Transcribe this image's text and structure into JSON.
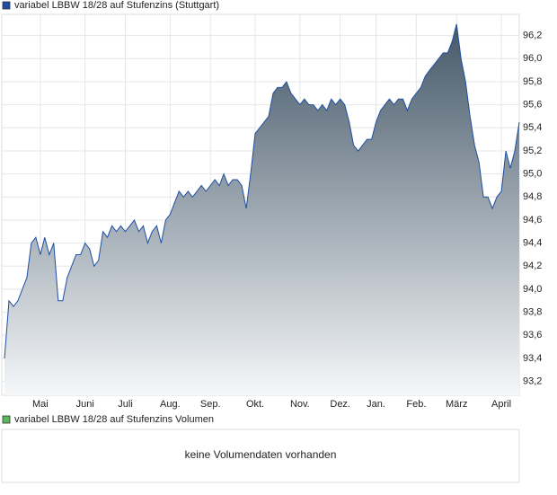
{
  "chart_data": {
    "type": "area",
    "series": [
      {
        "name": "variabel LBBW 18/28 auf Stufenzins (Stuttgart)",
        "color": "#1f4ea3",
        "values": [
          93.4,
          93.9,
          93.85,
          93.9,
          94.0,
          94.1,
          94.4,
          94.45,
          94.3,
          94.45,
          94.3,
          94.4,
          93.9,
          93.9,
          94.1,
          94.2,
          94.3,
          94.3,
          94.4,
          94.35,
          94.2,
          94.25,
          94.5,
          94.45,
          94.55,
          94.5,
          94.55,
          94.5,
          94.55,
          94.6,
          94.5,
          94.55,
          94.4,
          94.5,
          94.55,
          94.4,
          94.6,
          94.65,
          94.75,
          94.85,
          94.8,
          94.85,
          94.8,
          94.85,
          94.9,
          94.85,
          94.9,
          94.95,
          94.9,
          95.0,
          94.9,
          94.95,
          94.95,
          94.9,
          94.7,
          95.0,
          95.35,
          95.4,
          95.45,
          95.5,
          95.7,
          95.75,
          95.75,
          95.8,
          95.7,
          95.65,
          95.6,
          95.65,
          95.6,
          95.6,
          95.55,
          95.6,
          95.55,
          95.65,
          95.6,
          95.65,
          95.6,
          95.45,
          95.25,
          95.2,
          95.25,
          95.3,
          95.3,
          95.45,
          95.55,
          95.6,
          95.65,
          95.6,
          95.65,
          95.65,
          95.55,
          95.65,
          95.7,
          95.75,
          95.85,
          95.9,
          95.95,
          96.0,
          96.05,
          96.05,
          96.15,
          96.3,
          96.0,
          95.8,
          95.5,
          95.25,
          95.1,
          94.8,
          94.8,
          94.7,
          94.8,
          94.85,
          95.2,
          95.05,
          95.2,
          95.45
        ]
      }
    ],
    "categories": [
      null,
      null,
      null,
      null,
      null,
      null,
      null,
      null,
      "Mai",
      null,
      null,
      null,
      null,
      null,
      null,
      null,
      null,
      null,
      "Juni",
      null,
      null,
      null,
      null,
      null,
      null,
      null,
      null,
      "Juli",
      null,
      null,
      null,
      null,
      null,
      null,
      null,
      null,
      null,
      "Aug.",
      null,
      null,
      null,
      null,
      null,
      null,
      null,
      null,
      "Sep.",
      null,
      null,
      null,
      null,
      null,
      null,
      null,
      null,
      null,
      "Okt.",
      null,
      null,
      null,
      null,
      null,
      null,
      null,
      null,
      null,
      "Nov.",
      null,
      null,
      null,
      null,
      null,
      null,
      null,
      null,
      "Dez.",
      null,
      null,
      null,
      null,
      null,
      null,
      null,
      "Jan.",
      null,
      null,
      null,
      null,
      null,
      null,
      null,
      null,
      "Feb.",
      null,
      null,
      null,
      null,
      null,
      null,
      null,
      null,
      "März",
      null,
      null,
      null,
      null,
      null,
      null,
      null,
      null,
      null,
      "April",
      null,
      null,
      null,
      null
    ],
    "ylim": [
      93.08,
      96.47
    ],
    "yticks": [
      {
        "value": 93.2,
        "label": "93,2"
      },
      {
        "value": 93.4,
        "label": "93,4"
      },
      {
        "value": 93.6,
        "label": "93,6"
      },
      {
        "value": 93.8,
        "label": "93,8"
      },
      {
        "value": 94.0,
        "label": "94,0"
      },
      {
        "value": 94.2,
        "label": "94,2"
      },
      {
        "value": 94.4,
        "label": "94,4"
      },
      {
        "value": 94.6,
        "label": "94,6"
      },
      {
        "value": 94.8,
        "label": "94,8"
      },
      {
        "value": 95.0,
        "label": "95,0"
      },
      {
        "value": 95.2,
        "label": "95,2"
      },
      {
        "value": 95.4,
        "label": "95,4"
      },
      {
        "value": 95.6,
        "label": "95,6"
      },
      {
        "value": 95.8,
        "label": "95,8"
      },
      {
        "value": 96.0,
        "label": "96,0"
      },
      {
        "value": 96.2,
        "label": "96,2"
      }
    ],
    "grid": true
  },
  "volume_panel": {
    "title": "variabel LBBW 18/28 auf Stufenzins Volumen",
    "color": "#5cb85c",
    "note": "keine Volumendaten vorhanden"
  }
}
